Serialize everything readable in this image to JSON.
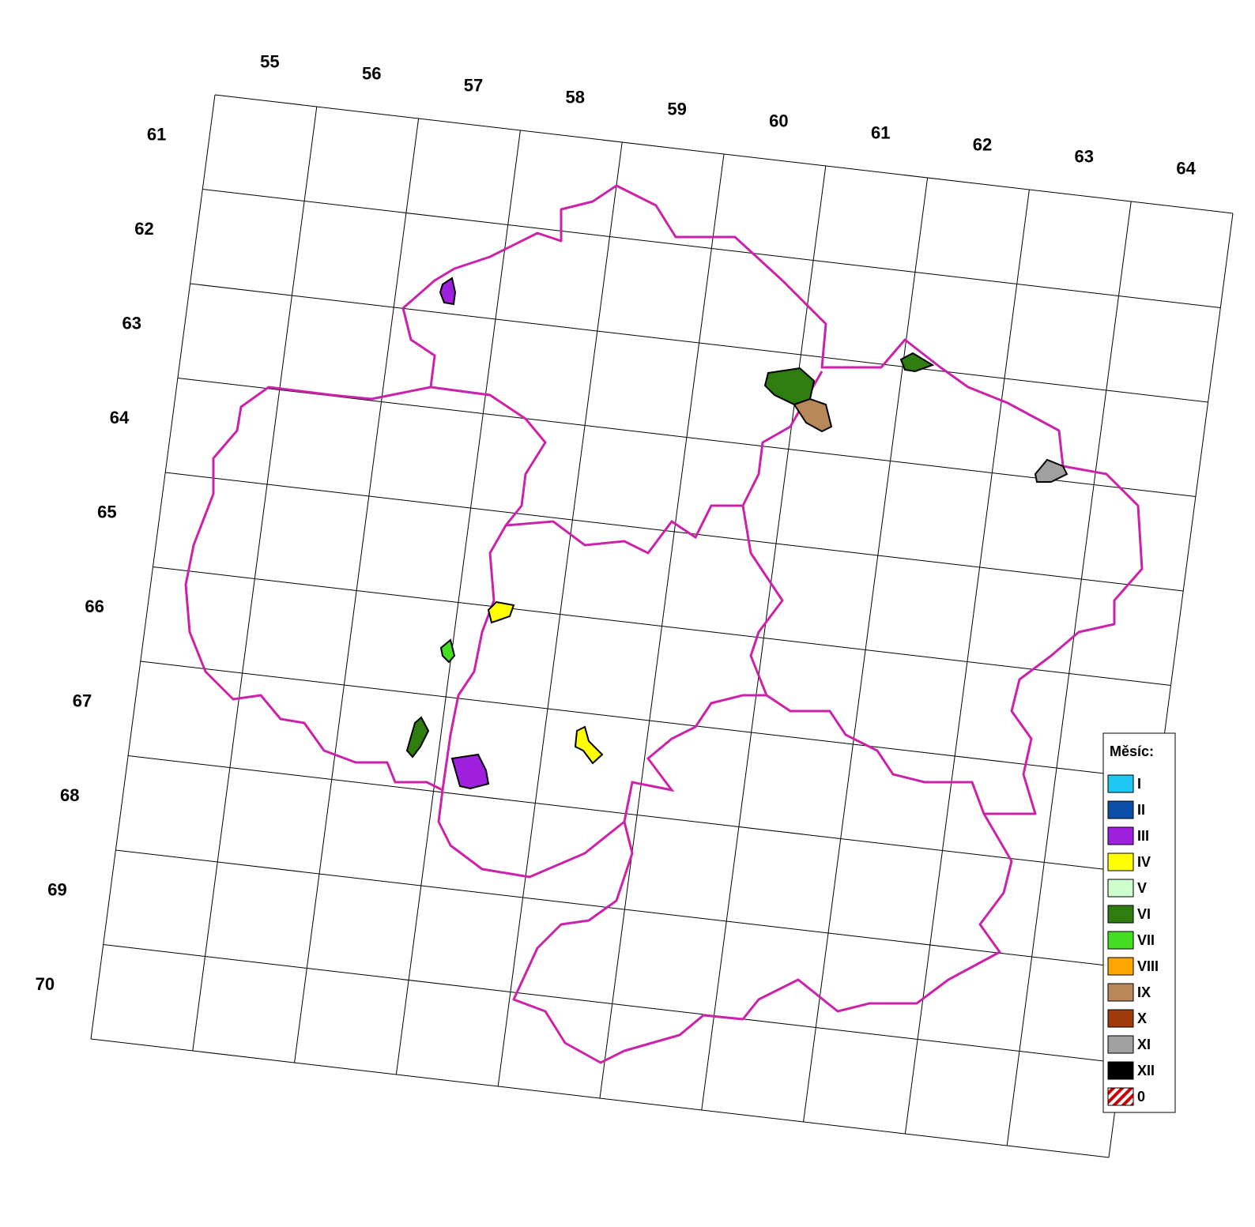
{
  "map": {
    "column_labels": [
      "55",
      "56",
      "57",
      "58",
      "59",
      "60",
      "61",
      "62",
      "63",
      "64"
    ],
    "row_labels": [
      "61",
      "62",
      "63",
      "64",
      "65",
      "66",
      "67",
      "68",
      "69",
      "70"
    ],
    "legend": {
      "title": "Měsíc:",
      "items": [
        {
          "label": "I",
          "color": "#1ec8f5"
        },
        {
          "label": "II",
          "color": "#0a4fa8"
        },
        {
          "label": "III",
          "color": "#a020e0"
        },
        {
          "label": "IV",
          "color": "#ffff00"
        },
        {
          "label": "V",
          "color": "#ccffcc"
        },
        {
          "label": "VI",
          "color": "#2e7d0e"
        },
        {
          "label": "VII",
          "color": "#44dd22"
        },
        {
          "label": "VIII",
          "color": "#ffa500"
        },
        {
          "label": "IX",
          "color": "#b8875a"
        },
        {
          "label": "X",
          "color": "#a03a0a"
        },
        {
          "label": "XI",
          "color": "#a0a0a0"
        },
        {
          "label": "XII",
          "color": "#000000"
        },
        {
          "label": "0",
          "color": "#cc0000",
          "hatched": true
        }
      ]
    }
  }
}
